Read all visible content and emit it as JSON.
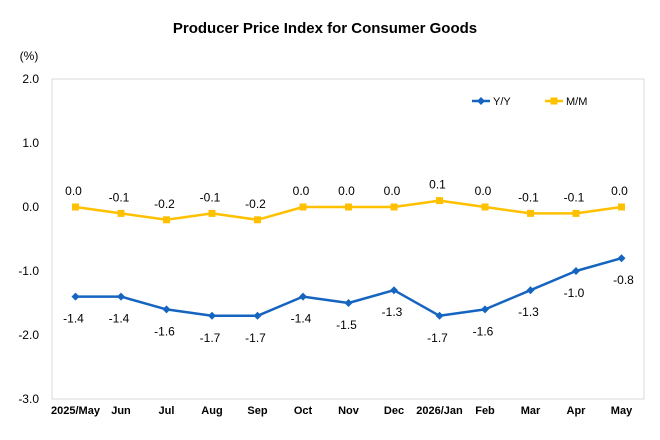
{
  "chart_data": {
    "type": "line",
    "title": "Producer Price Index for Consumer Goods",
    "ylabel": "(%)",
    "xlabel": "",
    "categories": [
      "2025/May",
      "Jun",
      "Jul",
      "Aug",
      "Sep",
      "Oct",
      "Nov",
      "Dec",
      "2026/Jan",
      "Feb",
      "Mar",
      "Apr",
      "May"
    ],
    "ylim": [
      -3.0,
      2.0
    ],
    "yticks": [
      2.0,
      1.0,
      0.0,
      -1.0,
      -2.0,
      -3.0
    ],
    "ytick_labels": [
      "2.0",
      "1.0",
      "0.0",
      "-1.0",
      "-2.0",
      "-3.0"
    ],
    "grid": false,
    "legend_position": "top-right",
    "series": [
      {
        "name": "Y/Y",
        "color": "#1565C0",
        "marker": "diamond",
        "label_position": "below",
        "values": [
          -1.4,
          -1.4,
          -1.6,
          -1.7,
          -1.7,
          -1.4,
          -1.5,
          -1.3,
          -1.7,
          -1.6,
          -1.3,
          -1.0,
          -0.8
        ],
        "labels": [
          "-1.4",
          "-1.4",
          "-1.6",
          "-1.7",
          "-1.7",
          "-1.4",
          "-1.5",
          "-1.3",
          "-1.7",
          "-1.6",
          "-1.3",
          "-1.0",
          "-0.8"
        ]
      },
      {
        "name": "M/M",
        "color": "#FFC000",
        "marker": "square",
        "label_position": "above",
        "values": [
          0.0,
          -0.1,
          -0.2,
          -0.1,
          -0.2,
          0.0,
          0.0,
          0.0,
          0.1,
          0.0,
          -0.1,
          -0.1,
          0.0
        ],
        "labels": [
          "0.0",
          "-0.1",
          "-0.2",
          "-0.1",
          "-0.2",
          "0.0",
          "0.0",
          "0.0",
          "0.1",
          "0.0",
          "-0.1",
          "-0.1",
          "0.0"
        ]
      }
    ]
  }
}
